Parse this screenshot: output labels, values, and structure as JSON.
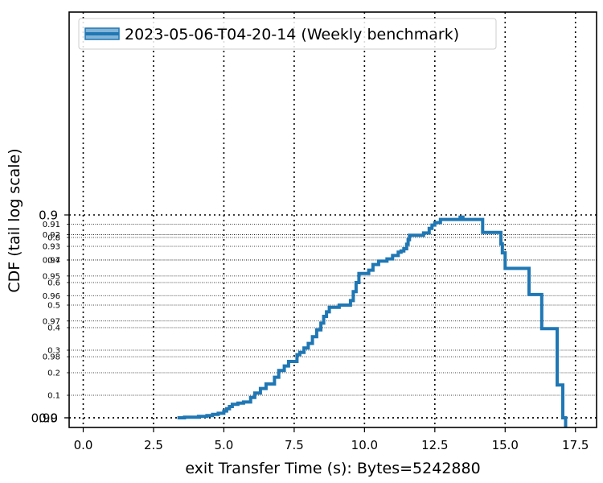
{
  "chart_data": {
    "type": "line",
    "title": "",
    "xlabel": "exit Transfer Time (s): Bytes=5242880",
    "ylabel": "CDF (tail log scale)",
    "xlim": [
      -0.5,
      18.25
    ],
    "x_ticks": [
      0.0,
      2.5,
      5.0,
      7.5,
      10.0,
      12.5,
      15.0,
      17.5
    ],
    "x_tick_labels": [
      "0.0",
      "2.5",
      "5.0",
      "7.5",
      "10.0",
      "12.5",
      "15.0",
      "17.5"
    ],
    "y_scale": "tail log",
    "y_major_ticks": [
      0.0,
      0.9,
      0.99
    ],
    "y_major_labels": [
      "0.0",
      "0.9",
      "0.99"
    ],
    "y_minor_ticks": [
      0.1,
      0.2,
      0.3,
      0.4,
      0.5,
      0.6,
      0.7,
      0.8,
      0.91,
      0.92,
      0.93,
      0.94,
      0.95,
      0.96,
      0.97,
      0.98
    ],
    "y_minor_labels": [
      "0.1",
      "0.2",
      "0.3",
      "0.4",
      "0.5",
      "0.6",
      "0.7",
      "0.8",
      "0.91",
      "0.92",
      "0.93",
      "0.94",
      "0.95",
      "0.96",
      "0.97",
      "0.98"
    ],
    "grid": true,
    "legend_position": "top-left",
    "series": [
      {
        "name": "2023-05-06-T04-20-14 (Weekly benchmark)",
        "color": "#1f77b4",
        "step": true,
        "x": [
          3.35,
          3.6,
          4.1,
          4.4,
          4.6,
          4.8,
          5.0,
          5.1,
          5.2,
          5.3,
          5.5,
          5.7,
          5.95,
          6.1,
          6.3,
          6.5,
          6.8,
          6.95,
          7.15,
          7.3,
          7.6,
          7.7,
          7.85,
          8.0,
          8.15,
          8.3,
          8.45,
          8.55,
          8.65,
          8.75,
          9.1,
          9.5,
          9.6,
          9.7,
          9.8,
          10.15,
          10.3,
          10.5,
          10.8,
          11.0,
          11.2,
          11.3,
          11.4,
          11.5,
          11.55,
          11.6,
          12.1,
          12.3,
          12.4,
          12.5,
          12.7,
          13.4,
          13.5,
          14.2,
          14.85,
          14.9,
          15.0,
          15.85,
          16.3,
          16.85,
          17.05,
          17.15
        ],
        "y": [
          0.0,
          0.003,
          0.006,
          0.01,
          0.015,
          0.02,
          0.03,
          0.04,
          0.05,
          0.06,
          0.065,
          0.07,
          0.09,
          0.11,
          0.13,
          0.15,
          0.18,
          0.21,
          0.23,
          0.25,
          0.28,
          0.29,
          0.31,
          0.33,
          0.36,
          0.39,
          0.42,
          0.45,
          0.47,
          0.49,
          0.5,
          0.52,
          0.56,
          0.6,
          0.64,
          0.655,
          0.68,
          0.695,
          0.705,
          0.72,
          0.735,
          0.74,
          0.75,
          0.77,
          0.79,
          0.81,
          0.82,
          0.84,
          0.855,
          0.866,
          0.88,
          0.89,
          0.905,
          0.918,
          0.928,
          0.935,
          0.9455,
          0.9595,
          0.9725,
          0.9855,
          0.99,
          0.993
        ]
      }
    ]
  }
}
